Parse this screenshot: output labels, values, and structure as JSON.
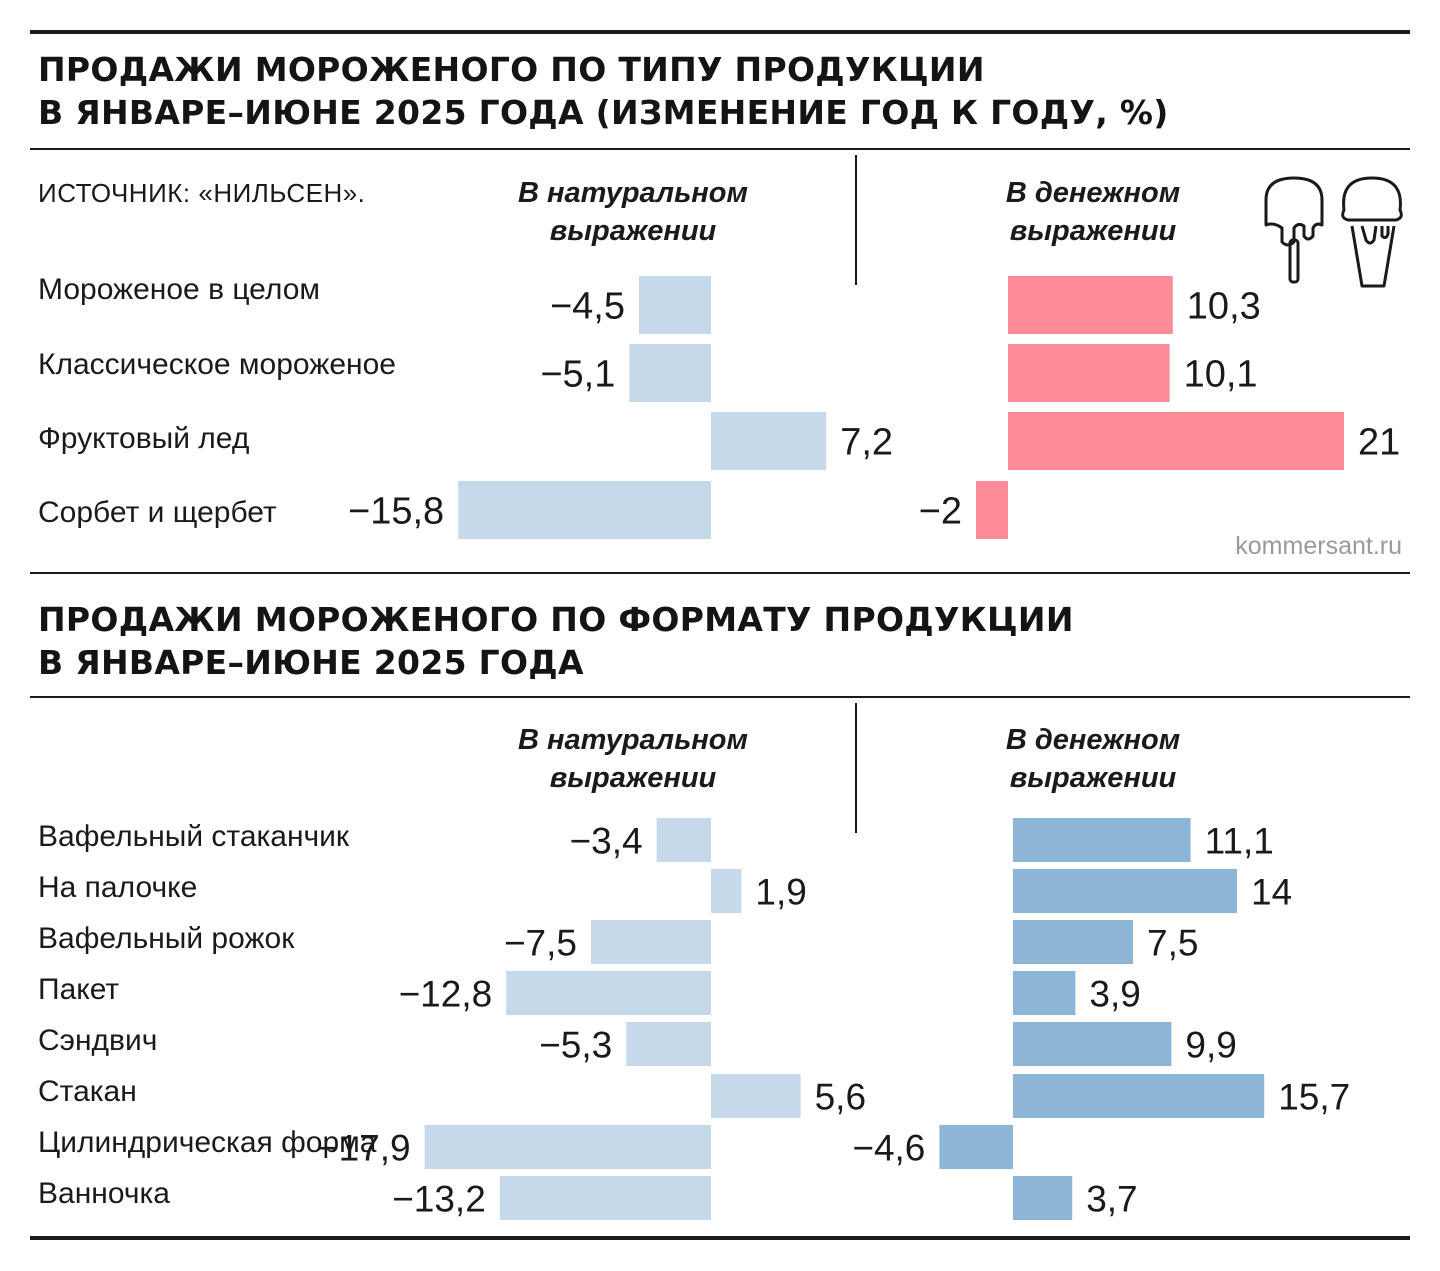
{
  "source": "ИСТОЧНИК: «НИЛЬСЕН».",
  "credit": "kommersant.ru",
  "icon_names": [
    "popsicle-icon",
    "ice-cream-cone-icon"
  ],
  "colors": {
    "natural": "#c5d9ea",
    "money_type": "#fe8c98",
    "money_format": "#8db6d6",
    "rule": "#1a1a1a"
  },
  "chart_data": [
    {
      "type": "bar",
      "orientation": "horizontal",
      "title_line1": "ПРОДАЖИ МОРОЖЕНОГО ПО ТИПУ ПРОДУКЦИИ",
      "title_line2": "В ЯНВАРЕ–ИЮНЕ 2025 ГОДА (ИЗМЕНЕНИЕ ГОД К ГОДУ, %)",
      "categories": [
        "Мороженое в целом",
        "Классическое мороженое",
        "Фруктовый лед",
        "Сорбет и щербет"
      ],
      "series": [
        {
          "name_line1": "В натуральном",
          "name_line2": "выражении",
          "values": [
            -4.5,
            -5.1,
            7.2,
            -15.8
          ],
          "labels": [
            "−4,5",
            "−5,1",
            "7,2",
            "−15,8"
          ]
        },
        {
          "name_line1": "В денежном",
          "name_line2": "выражении",
          "values": [
            10.3,
            10.1,
            21,
            -2
          ],
          "labels": [
            "10,3",
            "10,1",
            "21",
            "−2"
          ]
        }
      ]
    },
    {
      "type": "bar",
      "orientation": "horizontal",
      "title_line1": "ПРОДАЖИ МОРОЖЕНОГО ПО ФОРМАТУ ПРОДУКЦИИ",
      "title_line2": "В ЯНВАРЕ–ИЮНЕ 2025 ГОДА",
      "categories": [
        "Вафельный стаканчик",
        "На палочке",
        "Вафельный рожок",
        "Пакет",
        "Сэндвич",
        "Стакан",
        "Цилиндрическая форма",
        "Ванночка"
      ],
      "series": [
        {
          "name_line1": "В натуральном",
          "name_line2": "выражении",
          "values": [
            -3.4,
            1.9,
            -7.5,
            -12.8,
            -5.3,
            5.6,
            -17.9,
            -13.2
          ],
          "labels": [
            "−3,4",
            "1,9",
            "−7,5",
            "−12,8",
            "−5,3",
            "5,6",
            "−17,9",
            "−13,2"
          ]
        },
        {
          "name_line1": "В денежном",
          "name_line2": "выражении",
          "values": [
            11.1,
            14,
            7.5,
            3.9,
            9.9,
            15.7,
            -4.6,
            3.7
          ],
          "labels": [
            "11,1",
            "14",
            "7,5",
            "3,9",
            "9,9",
            "15,7",
            "−4,6",
            "3,7"
          ]
        }
      ]
    }
  ]
}
